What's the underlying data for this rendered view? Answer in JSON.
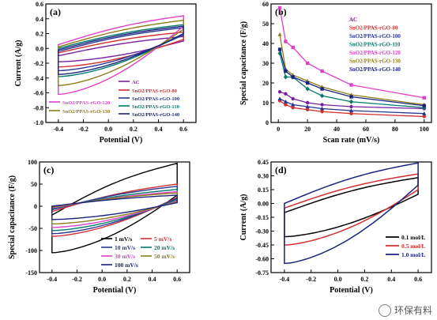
{
  "chart_data": [
    {
      "panel": "(a)",
      "type": "line",
      "xlabel": "Potential (V)",
      "ylabel": "Current (A/g)",
      "xlim": [
        -0.5,
        0.7
      ],
      "ylim": [
        -1.0,
        0.6
      ],
      "xticks": [
        -0.4,
        -0.2,
        0.0,
        0.2,
        0.4,
        0.6
      ],
      "xtick_labels": [
        "-0.4",
        "-0.2",
        "0.0",
        "0.2",
        "0.4",
        "0.6"
      ],
      "yticks": [
        -1.0,
        -0.8,
        -0.6,
        -0.4,
        -0.2,
        0.0,
        0.2,
        0.4,
        0.6
      ],
      "ytick_labels": [
        "-1.0",
        "-0.8",
        "-0.6",
        "-0.4",
        "-0.2",
        "0.0",
        "0.2",
        "0.4",
        "0.6"
      ],
      "legend_position": "bottom",
      "series": [
        {
          "name": "AC",
          "color": "#7b1fa2",
          "top_start": -0.1,
          "top_end": 0.16,
          "bot_end": 0.1,
          "bot_start": -0.18
        },
        {
          "name": "SnO2/PPAS-rGO-80",
          "color": "#d32f2f",
          "top_start": -0.06,
          "top_end": 0.22,
          "bot_end": 0.12,
          "bot_start": -0.25
        },
        {
          "name": "SnO2/PPAS-rGO-100",
          "color": "#283593",
          "top_start": -0.04,
          "top_end": 0.28,
          "bot_end": 0.18,
          "bot_start": -0.3
        },
        {
          "name": "SnO2/PPAS-rGO-110",
          "color": "#00796b",
          "top_start": 0.0,
          "top_end": 0.32,
          "bot_end": 0.2,
          "bot_start": -0.38
        },
        {
          "name": "SnO2/PPAS-rGO-120",
          "color": "#e040c8",
          "top_start": 0.05,
          "top_end": 0.44,
          "bot_end": 0.3,
          "bot_start": -0.62
        },
        {
          "name": "SnO2/PPAS-rGO-130",
          "color": "#8d7d1a",
          "top_start": 0.02,
          "top_end": 0.38,
          "bot_end": 0.26,
          "bot_start": -0.5
        },
        {
          "name": "SnO2/PPAS-rGO-140",
          "color": "#1a237e",
          "top_start": -0.02,
          "top_end": 0.3,
          "bot_end": 0.2,
          "bot_start": -0.35
        }
      ]
    },
    {
      "panel": "(b)",
      "type": "line",
      "xlabel": "Scan rate (mV/s)",
      "ylabel": "Special capacitance (F/g)",
      "xlim": [
        -5,
        105
      ],
      "ylim": [
        0,
        60
      ],
      "xticks": [
        0,
        20,
        40,
        60,
        80,
        100
      ],
      "xtick_labels": [
        "0",
        "20",
        "40",
        "60",
        "80",
        "100"
      ],
      "yticks": [
        0,
        10,
        20,
        30,
        40,
        50,
        60
      ],
      "ytick_labels": [
        "0",
        "10",
        "20",
        "30",
        "40",
        "50",
        "60"
      ],
      "legend_position": "top-right",
      "x": [
        1,
        5,
        10,
        20,
        30,
        50,
        100
      ],
      "series": [
        {
          "name": "AC",
          "color": "#7b1fa2",
          "values": [
            15.5,
            14.5,
            12,
            10,
            9,
            8,
            7
          ]
        },
        {
          "name": "SnO2/PPAS-rGO-80",
          "color": "#d32f2f",
          "values": [
            11,
            9,
            7.5,
            6.5,
            5.5,
            4.5,
            3
          ]
        },
        {
          "name": "SnO2/PPAS-rGO-100",
          "color": "#283593",
          "values": [
            12,
            10.5,
            9,
            8,
            7,
            6,
            4.5
          ]
        },
        {
          "name": "SnO2/PPAS-rGO-110",
          "color": "#00796b",
          "values": [
            35,
            23,
            23,
            17,
            13.5,
            10.5,
            7.5
          ]
        },
        {
          "name": "SnO2/PPAS-rGO-120",
          "color": "#e040c8",
          "values": [
            58,
            41,
            38,
            30,
            26,
            19,
            12.5
          ]
        },
        {
          "name": "SnO2/PPAS-rGO-130",
          "color": "#8d7d1a",
          "values": [
            44.5,
            27,
            24,
            21,
            18,
            14,
            9
          ]
        },
        {
          "name": "SnO2/PPAS-rGO-140",
          "color": "#1a237e",
          "values": [
            37,
            26,
            23,
            20,
            17,
            13,
            8.5
          ]
        }
      ]
    },
    {
      "panel": "(c)",
      "type": "line",
      "xlabel": "Potential (V)",
      "ylabel": "Special capacitance (F/g)",
      "xlim": [
        -0.5,
        0.7
      ],
      "ylim": [
        -150,
        100
      ],
      "xticks": [
        -0.4,
        -0.2,
        0.0,
        0.2,
        0.4,
        0.6
      ],
      "xtick_labels": [
        "-0.4",
        "-0.2",
        "0.0",
        "0.2",
        "0.4",
        "0.6"
      ],
      "yticks": [
        -150,
        -100,
        -50,
        0,
        50,
        100
      ],
      "ytick_labels": [
        "-150",
        "-100",
        "-50",
        "0",
        "50",
        "100"
      ],
      "legend_position": "bottom-right",
      "series": [
        {
          "name": "1 mV/s",
          "color": "#000000",
          "top_start": -20,
          "top_end": 97,
          "bot_end": 25,
          "bot_start": -105
        },
        {
          "name": "5 mV/s",
          "color": "#d32f2f",
          "top_start": -12,
          "top_end": 50,
          "bot_end": 20,
          "bot_start": -68
        },
        {
          "name": "10 mV/s",
          "color": "#283593",
          "top_start": -8,
          "top_end": 45,
          "bot_end": 18,
          "bot_start": -62
        },
        {
          "name": "20 mV/s",
          "color": "#00796b",
          "top_start": -6,
          "top_end": 38,
          "bot_end": 15,
          "bot_start": -55
        },
        {
          "name": "30 mV/s",
          "color": "#e040c8",
          "top_start": -4,
          "top_end": 33,
          "bot_end": 12,
          "bot_start": -48
        },
        {
          "name": "50 mV/s",
          "color": "#8d7d1a",
          "top_start": -2,
          "top_end": 30,
          "bot_end": 10,
          "bot_start": -40
        },
        {
          "name": "100 mV/s",
          "color": "#1a237e",
          "top_start": 0,
          "top_end": 25,
          "bot_end": 8,
          "bot_start": -30
        }
      ]
    },
    {
      "panel": "(d)",
      "type": "line",
      "xlabel": "Potential (V)",
      "ylabel": "Current (A/g)",
      "xlim": [
        -0.5,
        0.7
      ],
      "ylim": [
        -0.75,
        0.45
      ],
      "xticks": [
        -0.4,
        -0.2,
        0.0,
        0.2,
        0.4,
        0.6
      ],
      "xtick_labels": [
        "-0.4",
        "-0.2",
        "0.0",
        "0.2",
        "0.4",
        "0.6"
      ],
      "yticks": [
        -0.75,
        -0.6,
        -0.45,
        -0.3,
        -0.15,
        0.0,
        0.15,
        0.3,
        0.45
      ],
      "ytick_labels": [
        "-0.75",
        "-0.60",
        "-0.45",
        "-0.30",
        "-0.15",
        "0.00",
        "0.15",
        "0.30",
        "0.45"
      ],
      "legend_position": "bottom-right",
      "series": [
        {
          "name": "0.1 mol/L",
          "color": "#000000",
          "top_start": -0.1,
          "top_end": 0.28,
          "bot_end": 0.1,
          "bot_start": -0.36
        },
        {
          "name": "0.5 mol/L",
          "color": "#d32f2f",
          "top_start": -0.05,
          "top_end": 0.32,
          "bot_end": 0.15,
          "bot_start": -0.45
        },
        {
          "name": "1.0 mol/L",
          "color": "#1a237e",
          "top_start": 0.0,
          "top_end": 0.44,
          "bot_end": 0.2,
          "bot_start": -0.65
        }
      ]
    }
  ],
  "watermark": "环保有料"
}
